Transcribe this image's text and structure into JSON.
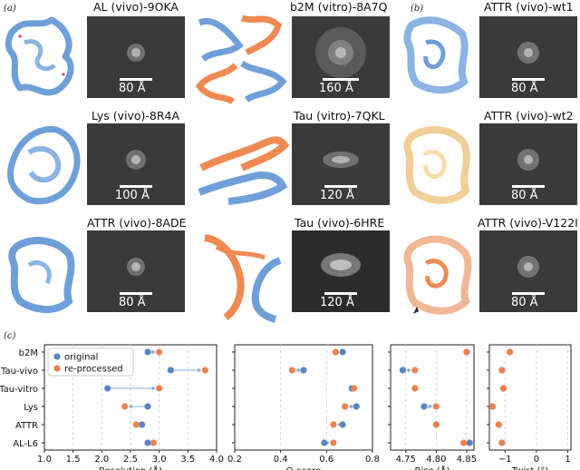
{
  "panel_labels": {
    "a": "(a)",
    "b": "(b)",
    "c": "(c)"
  },
  "colors": {
    "blue": "#6f9fd8",
    "orange": "#f08a52",
    "cream": "#f5ddb0",
    "em_bg": "#3a3a3a",
    "grid": "#cccccc"
  },
  "structure_panels": [
    {
      "title": "AL (vivo)-9OKA",
      "scale": "80 Å"
    },
    {
      "title": "b2M (vitro)-8A7Q",
      "scale": "160 Å"
    },
    {
      "title": "ATTR (vivo)-wt1",
      "scale": "80 Å"
    },
    {
      "title": "Lys (vivo)-8R4A",
      "scale": "100 Å"
    },
    {
      "title": "Tau (vitro)-7QKL",
      "scale": "120 Å"
    },
    {
      "title": "ATTR (vivo)-wt2",
      "scale": "80 Å"
    },
    {
      "title": "ATTR (vivo)-8ADE",
      "scale": "80 Å"
    },
    {
      "title": "Tau (vivo)-6HRE",
      "scale": "120 Å"
    },
    {
      "title": "ATTR (vivo)-V122I",
      "scale": "80 Å"
    }
  ],
  "chart_data": [
    {
      "type": "scatter",
      "xlabel": "Resolution (Å)",
      "categories": [
        "b2M",
        "Tau-vivo",
        "Tau-vitro",
        "Lys",
        "ATTR",
        "AL-L6"
      ],
      "xlim": [
        1.0,
        4.0
      ],
      "xticks": [
        "1.0",
        "1.5",
        "2.0",
        "2.5",
        "3.0",
        "3.5",
        "4.0"
      ],
      "legend": [
        "original",
        "re-processed"
      ],
      "legend_position": "upper-left",
      "series": [
        {
          "name": "original",
          "color": "#5b84c4",
          "values": [
            2.8,
            3.2,
            2.1,
            2.8,
            2.7,
            2.8
          ]
        },
        {
          "name": "re-processed",
          "color": "#ee8150",
          "values": [
            3.0,
            3.8,
            3.0,
            2.4,
            2.6,
            2.9
          ]
        }
      ]
    },
    {
      "type": "scatter",
      "xlabel": "Q-score",
      "categories": [
        "b2M",
        "Tau-vivo",
        "Tau-vitro",
        "Lys",
        "ATTR",
        "AL-L6"
      ],
      "xlim": [
        0.2,
        0.8
      ],
      "xticks": [
        "0.2",
        "0.4",
        "0.6",
        "0.8"
      ],
      "series": [
        {
          "name": "original",
          "color": "#5b84c4",
          "values": [
            0.67,
            0.5,
            0.71,
            0.73,
            0.67,
            0.59
          ]
        },
        {
          "name": "re-processed",
          "color": "#ee8150",
          "values": [
            0.64,
            0.45,
            0.72,
            0.68,
            0.63,
            0.63
          ]
        }
      ]
    },
    {
      "type": "scatter",
      "xlabel": "Rise (Å)",
      "categories": [
        "b2M",
        "Tau-vivo",
        "Tau-vitro",
        "Lys",
        "ATTR",
        "AL-L6"
      ],
      "xlim": [
        4.725,
        4.862
      ],
      "xticks": [
        "4.75",
        "4.80",
        "4.85"
      ],
      "series": [
        {
          "name": "original",
          "color": "#5b84c4",
          "values": [
            4.85,
            4.745,
            4.765,
            4.78,
            4.8,
            4.855
          ]
        },
        {
          "name": "re-processed",
          "color": "#ee8150",
          "values": [
            4.85,
            4.765,
            4.765,
            4.8,
            4.8,
            4.845
          ]
        }
      ]
    },
    {
      "type": "scatter",
      "xlabel": "Twist (°)",
      "categories": [
        "b2M",
        "Tau-vivo",
        "Tau-vitro",
        "Lys",
        "ATTR",
        "AL-L6"
      ],
      "xlim": [
        -1.5,
        1.1
      ],
      "xticks": [
        "−1",
        "0",
        "1"
      ],
      "series": [
        {
          "name": "original",
          "color": "#5b84c4",
          "values": [
            -0.85,
            -1.1,
            -1.05,
            -1.4,
            -1.2,
            -1.1
          ]
        },
        {
          "name": "re-processed",
          "color": "#ee8150",
          "values": [
            -0.85,
            -1.1,
            -1.05,
            -1.4,
            -1.2,
            -1.1
          ]
        }
      ]
    }
  ]
}
